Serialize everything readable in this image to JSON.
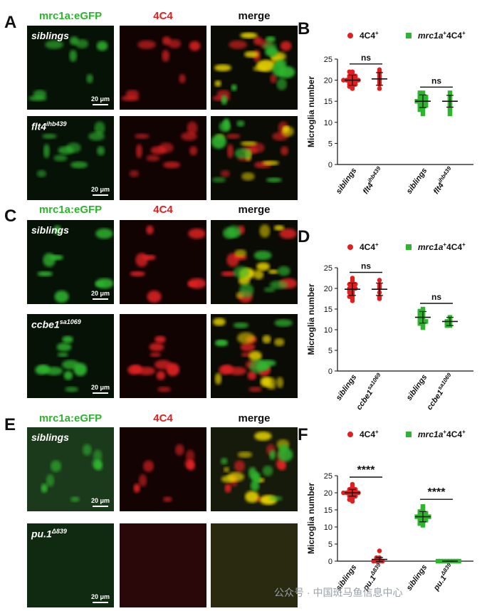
{
  "figure": {
    "panels": [
      {
        "letter": "A",
        "col_heads": [
          "mrc1a:eGFP",
          "4C4",
          "merge"
        ],
        "rows": [
          {
            "label": "siblings",
            "sup": "",
            "scale": "20 μm"
          },
          {
            "label": "flt4",
            "sup": "ihb439",
            "scale": "20 μm"
          }
        ]
      },
      {
        "letter": "C",
        "col_heads": [
          "mrc1a:eGFP",
          "4C4",
          "merge"
        ],
        "rows": [
          {
            "label": "siblings",
            "sup": "",
            "scale": "20 μm"
          },
          {
            "label": "ccbe1",
            "sup": "sa1069",
            "scale": "20 μm"
          }
        ]
      },
      {
        "letter": "E",
        "col_heads": [
          "mrc1a:eGFP",
          "4C4",
          "merge"
        ],
        "rows": [
          {
            "label": "siblings",
            "sup": "",
            "scale": "20 μm"
          },
          {
            "label": "pu.1",
            "sup": "Δ839",
            "scale": "20 μm"
          }
        ]
      }
    ],
    "colors": {
      "green": "#2db52d",
      "red": "#e02020"
    },
    "watermark": "公众号 · 中国斑马鱼信息中心"
  },
  "chart_data": [
    {
      "letter": "B",
      "type": "scatter",
      "ylabel": "Microglia number",
      "ylim": [
        0,
        25
      ],
      "yticks": [
        0,
        5,
        10,
        15,
        20,
        25
      ],
      "legend": [
        {
          "name": "4C4",
          "sup": "+"
        },
        {
          "name": "mrc1a",
          "sup": "+",
          "suffix": "4C4",
          "suffix_sup": "+"
        }
      ],
      "xtick_labels": [
        {
          "main": "siblings",
          "sup": ""
        },
        {
          "main": "flt4",
          "sup": "ihb439"
        },
        {
          "main": "siblings",
          "sup": ""
        },
        {
          "main": "flt4",
          "sup": "ihb439"
        }
      ],
      "groups": [
        {
          "series": 0,
          "mean": 20.0,
          "sd": 1.2,
          "values": [
            18,
            18.5,
            19,
            19,
            19.5,
            19.5,
            20,
            20,
            20,
            20,
            20.5,
            20.5,
            21,
            21,
            21.5,
            22,
            19,
            20,
            21,
            18.5,
            22,
            20,
            19.5,
            20.5
          ]
        },
        {
          "series": 0,
          "mean": 20.3,
          "sd": 1.5,
          "values": [
            18,
            19,
            19.5,
            20,
            20.5,
            21,
            21.5,
            22,
            22.5
          ]
        },
        {
          "series": 1,
          "mean": 15.0,
          "sd": 1.5,
          "values": [
            12,
            13,
            13.5,
            14,
            14,
            14.5,
            15,
            15,
            15,
            15.5,
            15.5,
            16,
            16,
            16.5,
            17,
            17,
            14,
            15,
            16,
            13,
            15.5,
            14.5,
            16.5
          ]
        },
        {
          "series": 1,
          "mean": 15.0,
          "sd": 1.4,
          "values": [
            12,
            13,
            14,
            14.5,
            15,
            15.5,
            16,
            17,
            13.5
          ]
        }
      ],
      "annotations": [
        "ns",
        "ns"
      ]
    },
    {
      "letter": "D",
      "type": "scatter",
      "ylabel": "Microglia number",
      "ylim": [
        0,
        25
      ],
      "yticks": [
        0,
        5,
        10,
        15,
        20,
        25
      ],
      "legend": [
        {
          "name": "4C4",
          "sup": "+"
        },
        {
          "name": "mrc1a",
          "sup": "+",
          "suffix": "4C4",
          "suffix_sup": "+"
        }
      ],
      "xtick_labels": [
        {
          "main": "siblings",
          "sup": ""
        },
        {
          "main": "ccbe1",
          "sup": "sa1069"
        },
        {
          "main": "siblings",
          "sup": ""
        },
        {
          "main": "ccbe1",
          "sup": "sa1069"
        }
      ],
      "groups": [
        {
          "series": 0,
          "mean": 19.8,
          "sd": 1.5,
          "values": [
            17,
            17.5,
            18,
            18.5,
            19,
            19,
            19.5,
            20,
            20,
            20.5,
            21,
            21,
            21.5,
            22,
            22.5,
            18,
            20,
            21,
            19.5
          ]
        },
        {
          "series": 0,
          "mean": 19.8,
          "sd": 1.5,
          "values": [
            17.5,
            18,
            19,
            20,
            20.5,
            21,
            22
          ]
        },
        {
          "series": 1,
          "mean": 13.0,
          "sd": 1.4,
          "values": [
            10.5,
            11,
            11.5,
            12,
            12,
            12.5,
            13,
            13,
            13.5,
            14,
            14,
            14.5,
            15,
            12,
            13.5,
            11.5,
            14.5
          ]
        },
        {
          "series": 1,
          "mean": 12.0,
          "sd": 1.0,
          "values": [
            11,
            11.5,
            12,
            12,
            12.5,
            13,
            11
          ]
        }
      ],
      "annotations": [
        "ns",
        "ns"
      ]
    },
    {
      "letter": "F",
      "type": "scatter",
      "ylabel": "Microglia number",
      "ylim": [
        0,
        25
      ],
      "yticks": [
        0,
        5,
        10,
        15,
        20,
        25
      ],
      "legend": [
        {
          "name": "4C4",
          "sup": "+"
        },
        {
          "name": "mrc1a",
          "sup": "+",
          "suffix": "4C4",
          "suffix_sup": "+"
        }
      ],
      "xtick_labels": [
        {
          "main": "siblings",
          "sup": ""
        },
        {
          "main": "pu.1",
          "sup": "Δ839"
        },
        {
          "main": "siblings",
          "sup": ""
        },
        {
          "main": "pu.1",
          "sup": "Δ839"
        }
      ],
      "groups": [
        {
          "series": 0,
          "mean": 20.0,
          "sd": 1.0,
          "values": [
            17.5,
            18,
            18.5,
            19,
            19,
            19.5,
            19.5,
            20,
            20,
            20,
            20,
            20.5,
            20.5,
            21,
            21,
            21.5,
            22,
            19,
            20,
            21,
            18,
            22.5,
            19.5,
            20.5,
            20
          ]
        },
        {
          "series": 0,
          "mean": 0.5,
          "sd": 0.6,
          "values": [
            0,
            0,
            0,
            0,
            0.5,
            0.5,
            1,
            1,
            3
          ]
        },
        {
          "series": 1,
          "mean": 13.0,
          "sd": 1.5,
          "values": [
            10.5,
            11,
            11,
            11.5,
            12,
            12,
            12.5,
            12.5,
            13,
            13,
            13,
            13.5,
            13.5,
            14,
            14,
            14.5,
            15,
            15.5,
            16,
            12,
            13,
            14,
            11.5,
            14.5,
            13
          ]
        },
        {
          "series": 1,
          "mean": 0,
          "sd": 0,
          "values": [
            0,
            0,
            0,
            0,
            0,
            0,
            0,
            0
          ]
        }
      ],
      "annotations": [
        "****",
        "****"
      ]
    }
  ]
}
